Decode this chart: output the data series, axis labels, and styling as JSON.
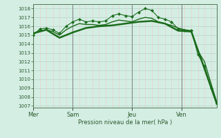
{
  "bg_color": "#d4eee4",
  "plot_bg": "#d4eee4",
  "line_color": "#1a6b1a",
  "grid_color_h": "#b8d8cc",
  "grid_color_v": "#f0c8c8",
  "day_line_color": "#888888",
  "ylabel_ticks": [
    1007,
    1008,
    1009,
    1010,
    1011,
    1012,
    1013,
    1014,
    1015,
    1016,
    1017,
    1018
  ],
  "ylim": [
    1006.8,
    1018.5
  ],
  "xlabel": "Pression niveau de la mer( hPa )",
  "day_labels": [
    "Mer",
    "Sam",
    "Jeu",
    "Ven"
  ],
  "day_positions": [
    0,
    36,
    90,
    135
  ],
  "xlim": [
    0,
    167
  ],
  "line1_x": [
    0,
    6,
    12,
    18,
    24,
    30,
    36,
    42,
    48,
    54,
    60,
    66,
    72,
    78,
    84,
    90,
    96,
    102,
    108,
    114,
    120,
    126,
    132,
    138,
    144,
    150,
    156,
    162,
    167
  ],
  "line1_y": [
    1015.0,
    1015.7,
    1015.8,
    1015.6,
    1015.2,
    1016.0,
    1016.5,
    1016.8,
    1016.5,
    1016.6,
    1016.5,
    1016.6,
    1017.2,
    1017.4,
    1017.2,
    1017.1,
    1017.6,
    1018.0,
    1017.8,
    1017.0,
    1016.8,
    1016.5,
    1015.7,
    1015.5,
    1015.5,
    1012.8,
    1011.5,
    1009.0,
    1007.3
  ],
  "line2_x": [
    0,
    6,
    12,
    18,
    24,
    30,
    36,
    42,
    48,
    54,
    60,
    66,
    72,
    78,
    84,
    90,
    96,
    102,
    108,
    114,
    120,
    126,
    132,
    138,
    144,
    150,
    156,
    162,
    167
  ],
  "line2_y": [
    1015.1,
    1015.5,
    1015.6,
    1015.4,
    1015.0,
    1015.6,
    1016.0,
    1016.3,
    1016.2,
    1016.2,
    1016.1,
    1016.2,
    1016.5,
    1016.7,
    1016.6,
    1016.5,
    1016.8,
    1017.0,
    1016.9,
    1016.5,
    1016.3,
    1016.1,
    1015.8,
    1015.6,
    1015.5,
    1013.2,
    1012.0,
    1009.5,
    1007.5
  ],
  "line3_x": [
    0,
    12,
    24,
    36,
    48,
    60,
    72,
    84,
    96,
    108,
    120,
    132,
    144,
    156,
    167
  ],
  "line3_y": [
    1015.2,
    1015.6,
    1014.7,
    1015.3,
    1015.8,
    1016.0,
    1016.1,
    1016.3,
    1016.5,
    1016.6,
    1016.3,
    1015.5,
    1015.4,
    1011.2,
    1007.3
  ],
  "tick_fontsize": 5,
  "xlabel_fontsize": 6,
  "tick_color": "#2d5a2d"
}
